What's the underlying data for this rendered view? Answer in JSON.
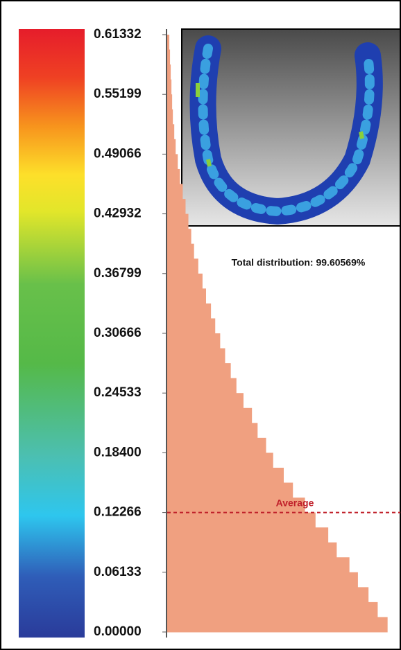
{
  "chart_data": {
    "type": "histogram",
    "orientation": "horizontal",
    "bins": [
      0,
      0.01533,
      0.03067,
      0.046,
      0.06133,
      0.07667,
      0.092,
      0.10733,
      0.12266,
      0.138,
      0.15333,
      0.16866,
      0.184,
      0.19933,
      0.21466,
      0.23,
      0.24533,
      0.26066,
      0.276,
      0.29133,
      0.30666,
      0.322,
      0.33733,
      0.35266,
      0.368,
      0.38333,
      0.39866,
      0.414,
      0.42933,
      0.44466,
      0.46,
      0.47533,
      0.49066,
      0.506,
      0.52133,
      0.53666,
      0.552,
      0.56733,
      0.58266,
      0.598,
      0.61332
    ],
    "counts": [
      312,
      298,
      285,
      270,
      258,
      240,
      228,
      210,
      195,
      178,
      165,
      150,
      140,
      128,
      120,
      108,
      98,
      90,
      82,
      75,
      68,
      62,
      55,
      50,
      44,
      38,
      34,
      30,
      26,
      22,
      18,
      15,
      12,
      10,
      8,
      7,
      6,
      5,
      4,
      3
    ],
    "color": "#f0a080",
    "xlim": [
      0,
      330
    ],
    "ylim": [
      0,
      0.61332
    ],
    "yticks": [
      {
        "value": 0,
        "label": "0.00000"
      },
      {
        "value": 0.06133,
        "label": "0.06133"
      },
      {
        "value": 0.12266,
        "label": "0.12266"
      },
      {
        "value": 0.184,
        "label": "0.18400"
      },
      {
        "value": 0.24533,
        "label": "0.24533"
      },
      {
        "value": 0.30666,
        "label": "0.30666"
      },
      {
        "value": 0.36799,
        "label": "0.36799"
      },
      {
        "value": 0.42932,
        "label": "0.42932"
      },
      {
        "value": 0.49066,
        "label": "0.49066"
      },
      {
        "value": 0.55199,
        "label": "0.55199"
      },
      {
        "value": 0.61332,
        "label": "0.61332"
      }
    ],
    "average": {
      "value": 0.12266,
      "label": "Average",
      "color": "#c0202a"
    },
    "annotation": "Total distribution: 99.60569%"
  }
}
